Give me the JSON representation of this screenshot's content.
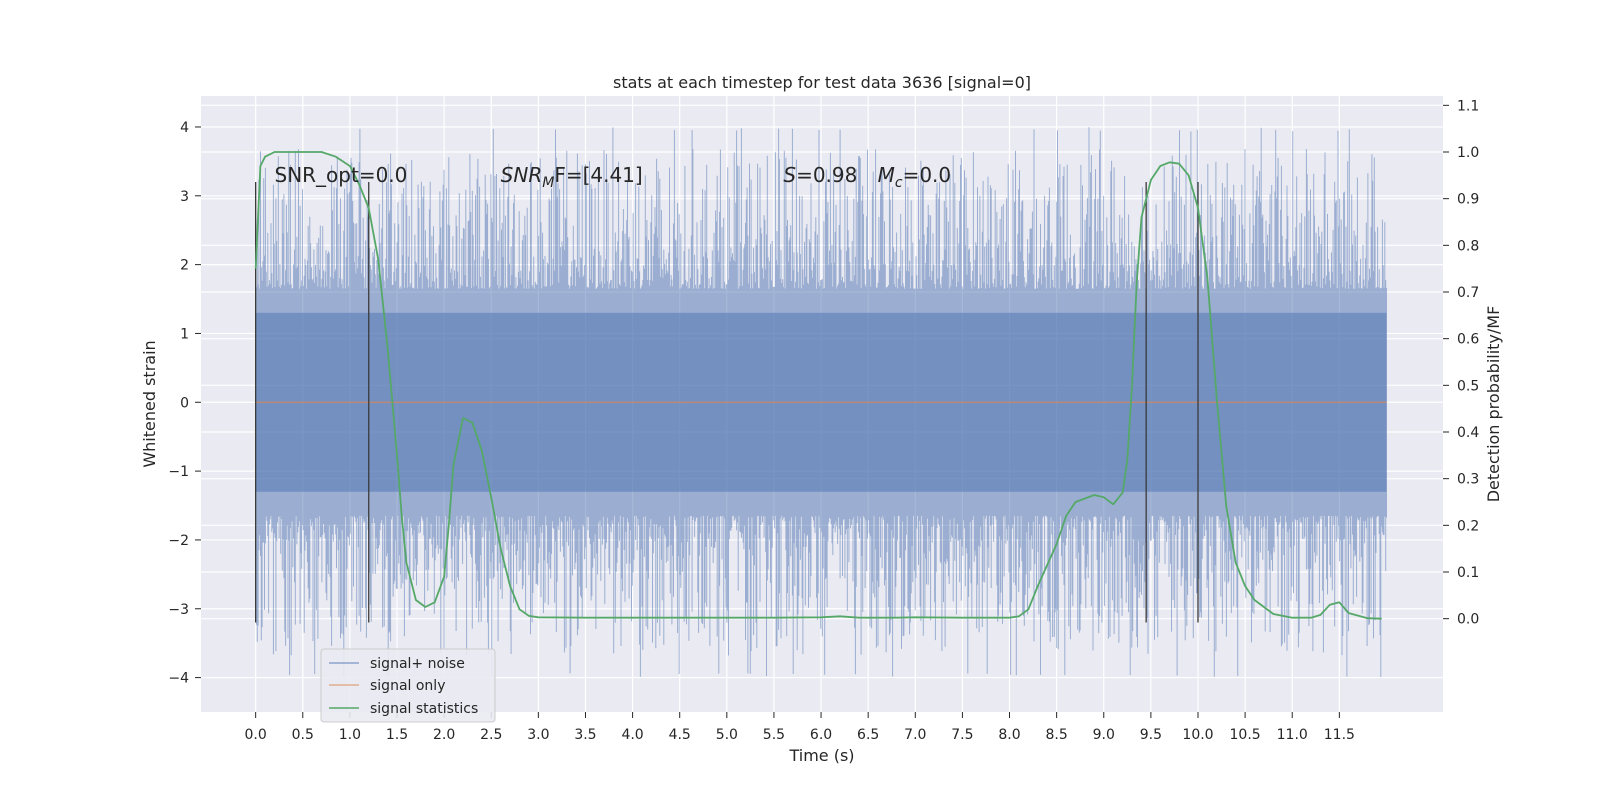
{
  "chart_data": {
    "type": "line",
    "title": "stats at each timestep for test data 3636 [signal=0]",
    "xlabel": "Time (s)",
    "ylabel": "Whitened strain",
    "y2label": "Detection probability/MF",
    "xlim": [
      -0.58,
      12.6
    ],
    "ylim": [
      -4.5,
      4.45
    ],
    "y2lim": [
      -0.2,
      1.12
    ],
    "x_ticks": [
      0.0,
      0.5,
      1.0,
      1.5,
      2.0,
      2.5,
      3.0,
      3.5,
      4.0,
      4.5,
      5.0,
      5.5,
      6.0,
      6.5,
      7.0,
      7.5,
      8.0,
      8.5,
      9.0,
      9.5,
      10.0,
      10.5,
      11.0,
      11.5
    ],
    "x_tick_labels": [
      "0.0",
      "0.5",
      "1.0",
      "1.5",
      "2.0",
      "2.5",
      "3.0",
      "3.5",
      "4.0",
      "4.5",
      "5.0",
      "5.5",
      "6.0",
      "6.5",
      "7.0",
      "7.5",
      "8.0",
      "8.5",
      "9.0",
      "9.5",
      "10.0",
      "10.5",
      "11.0",
      "11.5"
    ],
    "y_ticks": [
      -4,
      -3,
      -2,
      -1,
      0,
      1,
      2,
      3,
      4
    ],
    "y_tick_labels": [
      "−4",
      "−3",
      "−2",
      "−1",
      "0",
      "1",
      "2",
      "3",
      "4"
    ],
    "y2_ticks": [
      0.0,
      0.1,
      0.2,
      0.3,
      0.4,
      0.5,
      0.6,
      0.7,
      0.8,
      0.9,
      1.0,
      1.1
    ],
    "y2_tick_labels": [
      "0.0",
      "0.1",
      "0.2",
      "0.3",
      "0.4",
      "0.5",
      "0.6",
      "0.7",
      "0.8",
      "0.9",
      "1.0",
      "1.1"
    ],
    "grid": true,
    "legend_placement": "lower-left",
    "legend": [
      "signal+ noise",
      "signal only",
      "signal statistics"
    ],
    "colors": {
      "signal_noise": "#4c72b0",
      "signal_only": "#dd8452",
      "signal_statistics": "#55a868",
      "vlines": "#3a3a3a",
      "background": "#eaeaf2",
      "grid": "#ffffff"
    },
    "signal_noise": {
      "t_start": 0.0,
      "t_end": 12.0,
      "band_upper": 1.3,
      "band_lower": -1.3,
      "spike_upper_range": [
        1.9,
        4.1
      ],
      "spike_lower_range": [
        -1.9,
        -4.1
      ]
    },
    "signal_only": {
      "x": [
        0.0,
        12.0
      ],
      "y": [
        0.0,
        0.0
      ]
    },
    "signal_statistics": {
      "x": [
        0.0,
        0.05,
        0.1,
        0.2,
        0.3,
        0.5,
        0.7,
        0.85,
        1.0,
        1.1,
        1.2,
        1.3,
        1.4,
        1.5,
        1.55,
        1.6,
        1.7,
        1.8,
        1.9,
        2.0,
        2.05,
        2.1,
        2.2,
        2.3,
        2.4,
        2.5,
        2.6,
        2.7,
        2.8,
        2.9,
        3.0,
        3.5,
        4.0,
        4.5,
        5.0,
        5.5,
        6.0,
        6.2,
        6.4,
        6.8,
        7.0,
        7.5,
        8.0,
        8.1,
        8.2,
        8.3,
        8.5,
        8.6,
        8.7,
        8.9,
        9.0,
        9.1,
        9.2,
        9.25,
        9.3,
        9.35,
        9.4,
        9.5,
        9.6,
        9.7,
        9.8,
        9.9,
        10.0,
        10.1,
        10.2,
        10.3,
        10.4,
        10.5,
        10.6,
        10.8,
        11.0,
        11.2,
        11.3,
        11.4,
        11.5,
        11.6,
        11.8,
        11.95
      ],
      "y": [
        0.75,
        0.97,
        0.99,
        1.0,
        1.0,
        1.0,
        1.0,
        0.99,
        0.97,
        0.93,
        0.88,
        0.77,
        0.58,
        0.35,
        0.22,
        0.12,
        0.04,
        0.025,
        0.035,
        0.09,
        0.2,
        0.33,
        0.43,
        0.42,
        0.36,
        0.26,
        0.15,
        0.07,
        0.02,
        0.006,
        0.003,
        0.002,
        0.002,
        0.002,
        0.002,
        0.002,
        0.003,
        0.005,
        0.002,
        0.002,
        0.003,
        0.002,
        0.002,
        0.005,
        0.02,
        0.07,
        0.16,
        0.22,
        0.25,
        0.265,
        0.26,
        0.245,
        0.27,
        0.34,
        0.5,
        0.72,
        0.86,
        0.94,
        0.97,
        0.978,
        0.975,
        0.95,
        0.88,
        0.73,
        0.47,
        0.24,
        0.12,
        0.07,
        0.04,
        0.01,
        0.002,
        0.002,
        0.008,
        0.03,
        0.035,
        0.012,
        0.001,
        0.0
      ]
    },
    "vlines": {
      "x": [
        0.0,
        1.2,
        9.45,
        10.0
      ],
      "ymin": -3.2,
      "ymax": 3.2
    },
    "annotations": [
      {
        "x": 0.2,
        "y": 3.2,
        "text": "SNR_opt=0.0"
      },
      {
        "x": 2.6,
        "y": 3.2,
        "prefix": "SNR",
        "sub": "M",
        "suffix": "F=[4.41]"
      },
      {
        "x": 5.6,
        "y": 3.2,
        "prefix": "S",
        "suffix": "=0.98"
      },
      {
        "x": 6.6,
        "y": 3.2,
        "prefix": "M",
        "sub": "c",
        "suffix": "=0.0"
      }
    ]
  }
}
